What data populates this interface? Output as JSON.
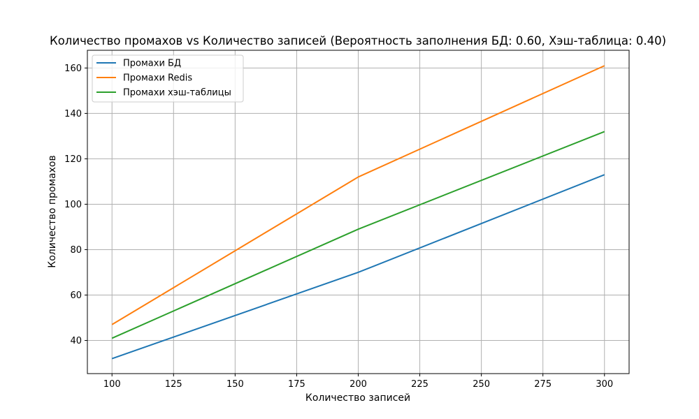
{
  "chart_data": {
    "type": "line",
    "title": "Количество промахов vs Количество записей (Вероятность заполнения БД: 0.60, Хэш-таблица: 0.40)",
    "xlabel": "Количество записей",
    "ylabel": "Количество промахов",
    "x": [
      100,
      200,
      300
    ],
    "xlim": [
      90,
      310
    ],
    "ylim": [
      25.4,
      167.8
    ],
    "xticks": [
      100,
      125,
      150,
      175,
      200,
      225,
      250,
      275,
      300
    ],
    "yticks": [
      40,
      60,
      80,
      100,
      120,
      140,
      160
    ],
    "grid": true,
    "legend_position": "top-left",
    "series": [
      {
        "name": "Промахи БД",
        "color": "#1f77b4",
        "values": [
          32,
          70,
          113
        ]
      },
      {
        "name": "Промахи Redis",
        "color": "#ff7f0e",
        "values": [
          47,
          112,
          161
        ]
      },
      {
        "name": "Промахи хэш-таблицы",
        "color": "#2ca02c",
        "values": [
          41,
          89,
          132
        ]
      }
    ]
  }
}
